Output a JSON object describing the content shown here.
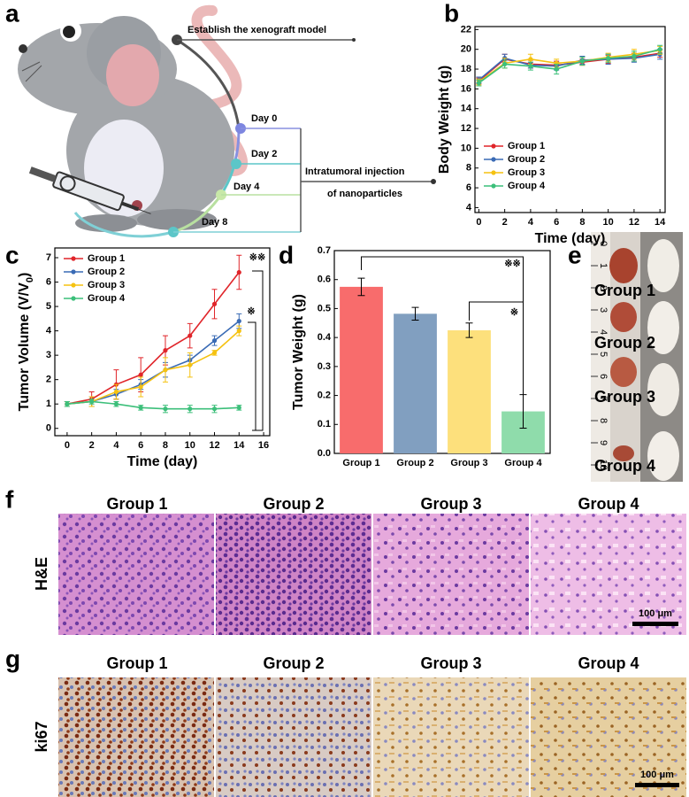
{
  "panel_labels": [
    "a",
    "b",
    "c",
    "d",
    "e",
    "f",
    "g"
  ],
  "schematic": {
    "model": "Establish the xenograft model",
    "days": [
      "Day 0",
      "Day 2",
      "Day 4",
      "Day 8"
    ],
    "injection": [
      "Intratumoral injection",
      "of nanoparticles"
    ]
  },
  "chart_data": [
    {
      "type": "line",
      "xlabel": "Time (day)",
      "ylabel": "Body Weight (g)",
      "legend": "center left",
      "x": [
        0,
        2,
        4,
        6,
        8,
        10,
        12,
        14
      ],
      "xlim": [
        -0.3,
        14.4
      ],
      "xticks": [
        0,
        2,
        4,
        6,
        8,
        10,
        12,
        14
      ],
      "ylim": [
        3.5,
        22.3
      ],
      "yticks": [
        4,
        6,
        8,
        10,
        12,
        14,
        16,
        18,
        20,
        22
      ],
      "series": [
        {
          "name": "Group 1",
          "color": "#e0252a",
          "values": [
            16.8,
            19.0,
            18.5,
            18.4,
            18.7,
            19.0,
            19.2,
            19.6
          ],
          "errors": [
            0.3,
            0.5,
            0.4,
            0.4,
            0.3,
            0.4,
            0.4,
            0.4
          ]
        },
        {
          "name": "Group 2",
          "color": "#3a6bb5",
          "values": [
            16.9,
            19.1,
            18.4,
            18.3,
            18.9,
            19.0,
            19.1,
            19.5
          ],
          "errors": [
            0.3,
            0.4,
            0.3,
            0.4,
            0.4,
            0.5,
            0.4,
            0.5
          ]
        },
        {
          "name": "Group 3",
          "color": "#f5c211",
          "values": [
            16.7,
            18.6,
            19.0,
            18.6,
            18.8,
            19.2,
            19.5,
            19.9
          ],
          "errors": [
            0.3,
            0.5,
            0.5,
            0.4,
            0.4,
            0.4,
            0.5,
            0.4
          ]
        },
        {
          "name": "Group 4",
          "color": "#3cbf7a",
          "values": [
            16.6,
            18.5,
            18.3,
            18.0,
            18.8,
            19.1,
            19.3,
            20.0
          ],
          "errors": [
            0.3,
            0.4,
            0.4,
            0.5,
            0.4,
            0.4,
            0.5,
            0.4
          ]
        }
      ]
    },
    {
      "type": "line",
      "xlabel": "Time (day)",
      "ylabel": "Tumor Volume (V/V",
      "ylabel_sub": "0",
      "ylabel_end": ")",
      "legend": "upper left",
      "x": [
        0,
        2,
        4,
        6,
        8,
        10,
        12,
        14
      ],
      "xlim": [
        -1,
        16.5
      ],
      "xticks": [
        0,
        2,
        4,
        6,
        8,
        10,
        12,
        14,
        16
      ],
      "ylim": [
        -0.3,
        7.4
      ],
      "yticks": [
        0,
        1,
        2,
        3,
        4,
        5,
        6,
        7
      ],
      "annotations": [
        "※※",
        "※"
      ],
      "series": [
        {
          "name": "Group 1",
          "color": "#e0252a",
          "values": [
            1.0,
            1.2,
            1.8,
            2.2,
            3.2,
            3.8,
            5.1,
            6.4
          ],
          "errors": [
            0.1,
            0.3,
            0.6,
            0.7,
            0.6,
            0.5,
            0.6,
            0.7
          ]
        },
        {
          "name": "Group 2",
          "color": "#3a6bb5",
          "values": [
            1.0,
            1.1,
            1.4,
            1.8,
            2.4,
            2.8,
            3.6,
            4.4
          ],
          "errors": [
            0.1,
            0.2,
            0.2,
            0.2,
            0.3,
            0.2,
            0.2,
            0.3
          ]
        },
        {
          "name": "Group 3",
          "color": "#f5c211",
          "values": [
            1.0,
            1.1,
            1.5,
            1.7,
            2.4,
            2.6,
            3.1,
            4.0
          ],
          "errors": [
            0.1,
            0.2,
            0.3,
            0.4,
            0.5,
            0.5,
            0.1,
            0.2
          ]
        },
        {
          "name": "Group 4",
          "color": "#3cbf7a",
          "values": [
            1.0,
            1.1,
            1.0,
            0.85,
            0.8,
            0.8,
            0.8,
            0.85
          ],
          "errors": [
            0.1,
            0.1,
            0.1,
            0.1,
            0.15,
            0.15,
            0.15,
            0.1
          ]
        }
      ]
    },
    {
      "type": "bar",
      "ylabel": "Tumor Weight (g)",
      "categories": [
        "Group 1",
        "Group 2",
        "Group 3",
        "Group 4"
      ],
      "values": [
        0.575,
        0.482,
        0.425,
        0.145
      ],
      "errors": [
        0.03,
        0.022,
        0.025,
        0.058
      ],
      "colors": [
        "#f86c6c",
        "#819fc0",
        "#fde07c",
        "#8fdcab"
      ],
      "ylim": [
        0,
        0.7
      ],
      "yticks": [
        {
          "value": 0,
          "label": "0.0"
        },
        0.1,
        0.2,
        0.3,
        0.4,
        0.5,
        0.6,
        0.7
      ],
      "annotations": [
        "※※",
        "※"
      ]
    }
  ],
  "photos": {
    "ruler": [
      0,
      1,
      2,
      3,
      4,
      5,
      6,
      7,
      8,
      9,
      10
    ],
    "groups": [
      "Group 1",
      "Group 2",
      "Group 3",
      "Group 4"
    ]
  },
  "histology": [
    {
      "stain": "H&E",
      "groups": [
        "Group 1",
        "Group 2",
        "Group 3",
        "Group 4"
      ],
      "scale_bar": "100 μm"
    },
    {
      "stain": "ki67",
      "groups": [
        "Group 1",
        "Group 2",
        "Group 3",
        "Group 4"
      ],
      "scale_bar": "100 μm"
    }
  ]
}
